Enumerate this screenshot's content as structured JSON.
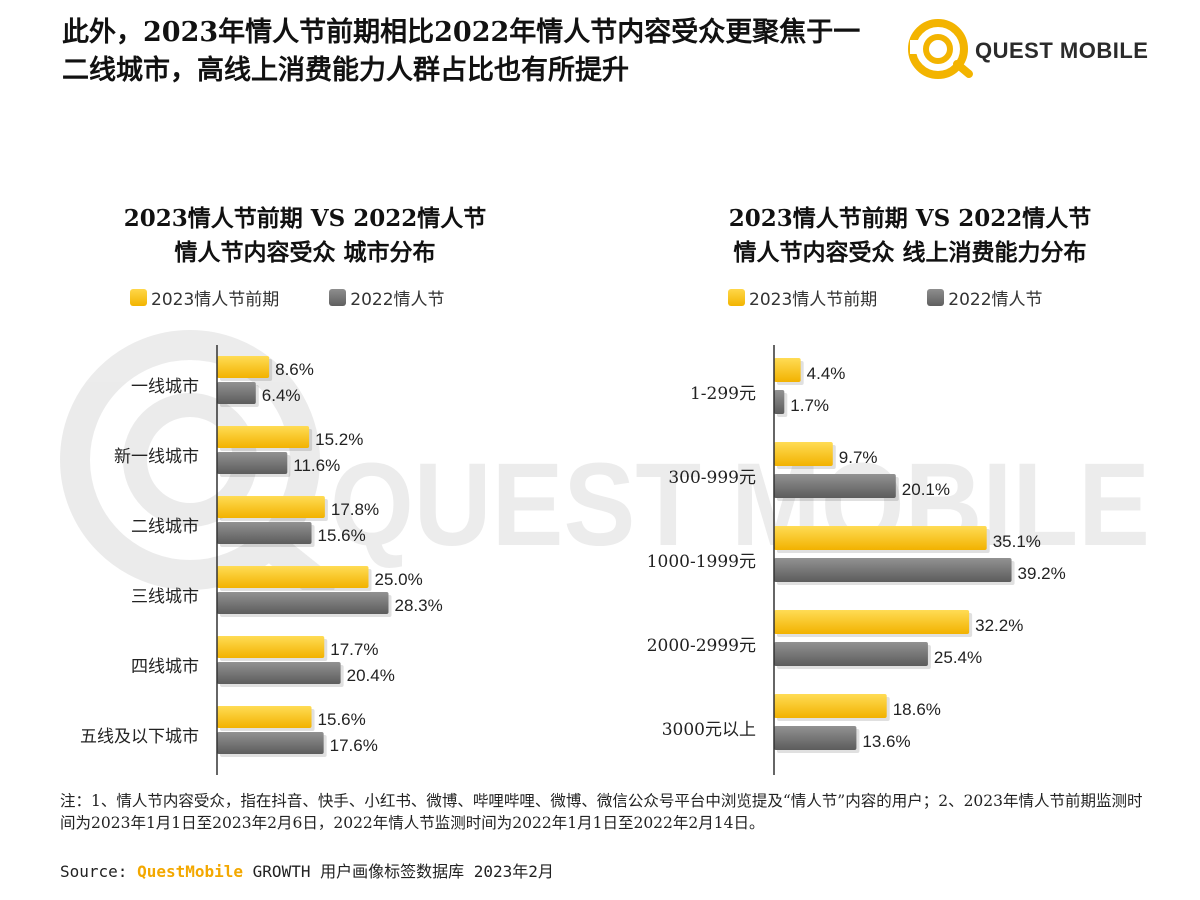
{
  "headline": {
    "line1": "此外，2023年情人节前期相比2022年情人节内容受众更聚焦于一",
    "line2": "二线城市，高线上消费能力人群占比也有所提升"
  },
  "logo": {
    "text": "QUEST MOBILE",
    "watermark_text": "QUEST MOBILE"
  },
  "colors": {
    "series_2023": "#f7c31a",
    "series_2022": "#7a7a7a",
    "accent": "#f3a800"
  },
  "chart_data": [
    {
      "type": "bar",
      "orientation": "horizontal",
      "title_line1": "2023情人节前期 VS 2022情人节",
      "title_line2": "情人节内容受众 城市分布",
      "categories": [
        "一线城市",
        "新一线城市",
        "二线城市",
        "三线城市",
        "四线城市",
        "五线及以下城市"
      ],
      "series": [
        {
          "name": "2023情人节前期",
          "values": [
            8.6,
            15.2,
            17.8,
            25.0,
            17.7,
            15.6
          ],
          "labels": [
            "8.6%",
            "15.2%",
            "17.8%",
            "25.0%",
            "17.7%",
            "15.6%"
          ]
        },
        {
          "name": "2022情人节",
          "values": [
            6.4,
            11.6,
            15.6,
            28.3,
            20.4,
            17.6
          ],
          "labels": [
            "6.4%",
            "11.6%",
            "15.6%",
            "28.3%",
            "20.4%",
            "17.6%"
          ]
        }
      ],
      "unit": "%",
      "xlim": [
        0,
        30
      ]
    },
    {
      "type": "bar",
      "orientation": "horizontal",
      "title_line1": "2023情人节前期 VS 2022情人节",
      "title_line2": "情人节内容受众 线上消费能力分布",
      "categories": [
        "1-299元",
        "300-999元",
        "1000-1999元",
        "2000-2999元",
        "3000元以上"
      ],
      "series": [
        {
          "name": "2023情人节前期",
          "values": [
            4.4,
            9.7,
            35.1,
            32.2,
            18.6
          ],
          "labels": [
            "4.4%",
            "9.7%",
            "35.1%",
            "32.2%",
            "18.6%"
          ]
        },
        {
          "name": "2022情人节",
          "values": [
            1.7,
            20.1,
            39.2,
            25.4,
            13.6
          ],
          "labels": [
            "1.7%",
            "20.1%",
            "39.2%",
            "25.4%",
            "13.6%"
          ]
        }
      ],
      "unit": "%",
      "xlim": [
        0,
        40
      ]
    }
  ],
  "footnote": {
    "text": "注：1、情人节内容受众，指在抖音、快手、小红书、微博、哔哩哔哩、微博、微信公众号平台中浏览提及“情人节”内容的用户；2、2023年情人节前期监测时间为2023年1月1日至2023年2月6日，2022年情人节监测时间为2022年1月1日至2022年2月14日。"
  },
  "source": {
    "prefix": "Source: ",
    "brand": "QuestMobile",
    "suffix": " GROWTH 用户画像标签数据库 2023年2月"
  }
}
